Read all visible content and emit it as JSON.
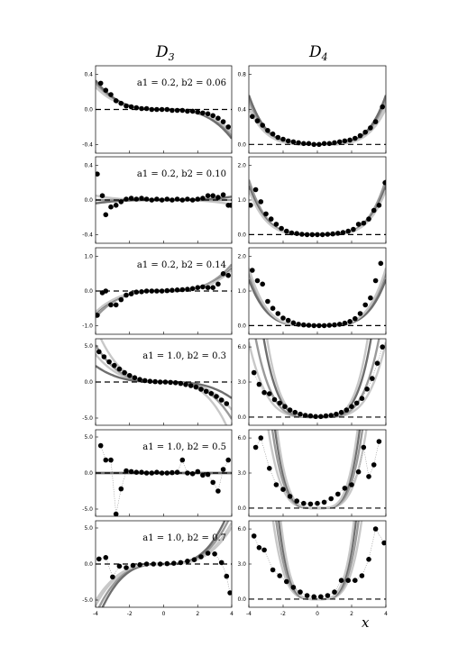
{
  "figure": {
    "column_titles": [
      {
        "main": "D",
        "sub": "3"
      },
      {
        "main": "D",
        "sub": "4"
      }
    ],
    "x_axis_label": "x",
    "x_ticks": [
      "-4",
      "-2",
      "0",
      "2",
      "4"
    ]
  },
  "panel_labels": [
    "a1 = 0.2,  b2 = 0.06",
    "a1 = 0.2,  b2 = 0.10",
    "a1 = 0.2,  b2 = 0.14",
    "a1 = 1.0,  b2 = 0.3",
    "a1 = 1.0,  b2 = 0.5",
    "a1 = 1.0,  b2 = 0.7"
  ],
  "colors": {
    "points": "#000000",
    "curve_light": "#c8c8c8",
    "curve_mid": "#9a9a9a",
    "curve_dark": "#6e6e6e",
    "reference": "#000000"
  },
  "chart_data": [
    {
      "type": "scatter",
      "column": "D3",
      "a1": 0.2,
      "b2": 0.06,
      "xlim": [
        -4,
        4
      ],
      "ylim": [
        -0.5,
        0.5
      ],
      "yticks": [
        "0.4",
        "0.0",
        "-0.4"
      ],
      "points": [
        [
          -3.7,
          0.3
        ],
        [
          -3.4,
          0.22
        ],
        [
          -3.1,
          0.17
        ],
        [
          -2.8,
          0.1
        ],
        [
          -2.5,
          0.07
        ],
        [
          -2.2,
          0.04
        ],
        [
          -1.9,
          0.03
        ],
        [
          -1.6,
          0.02
        ],
        [
          -1.3,
          0.01
        ],
        [
          -1.0,
          0.01
        ],
        [
          -0.7,
          0.0
        ],
        [
          -0.4,
          0.0
        ],
        [
          -0.1,
          0.0
        ],
        [
          0.2,
          0.0
        ],
        [
          0.5,
          -0.01
        ],
        [
          0.8,
          -0.01
        ],
        [
          1.1,
          -0.01
        ],
        [
          1.4,
          -0.02
        ],
        [
          1.7,
          -0.02
        ],
        [
          2.0,
          -0.03
        ],
        [
          2.3,
          -0.04
        ],
        [
          2.6,
          -0.05
        ],
        [
          2.9,
          -0.07
        ],
        [
          3.2,
          -0.1
        ],
        [
          3.5,
          -0.14
        ],
        [
          3.8,
          -0.2
        ]
      ]
    },
    {
      "type": "scatter",
      "column": "D4",
      "a1": 0.2,
      "b2": 0.06,
      "xlim": [
        -4,
        4
      ],
      "ylim": [
        -0.1,
        0.9
      ],
      "yticks": [
        "0.8",
        "0.4",
        "0.0"
      ],
      "points": [
        [
          -3.8,
          0.32
        ],
        [
          -3.5,
          0.27
        ],
        [
          -3.2,
          0.22
        ],
        [
          -2.9,
          0.16
        ],
        [
          -2.6,
          0.12
        ],
        [
          -2.3,
          0.08
        ],
        [
          -2.0,
          0.06
        ],
        [
          -1.7,
          0.04
        ],
        [
          -1.4,
          0.03
        ],
        [
          -1.1,
          0.02
        ],
        [
          -0.8,
          0.01
        ],
        [
          -0.5,
          0.01
        ],
        [
          -0.2,
          0.0
        ],
        [
          0.1,
          0.0
        ],
        [
          0.4,
          0.01
        ],
        [
          0.7,
          0.01
        ],
        [
          1.0,
          0.02
        ],
        [
          1.3,
          0.03
        ],
        [
          1.6,
          0.04
        ],
        [
          1.9,
          0.05
        ],
        [
          2.2,
          0.07
        ],
        [
          2.5,
          0.1
        ],
        [
          2.8,
          0.14
        ],
        [
          3.1,
          0.19
        ],
        [
          3.4,
          0.26
        ],
        [
          3.8,
          0.43
        ]
      ]
    },
    {
      "type": "scatter",
      "column": "D3",
      "a1": 0.2,
      "b2": 0.1,
      "xlim": [
        -4,
        4
      ],
      "ylim": [
        -0.5,
        0.5
      ],
      "yticks": [
        "0.4",
        "0.0",
        "-0.4"
      ],
      "points": [
        [
          -3.9,
          0.3
        ],
        [
          -3.6,
          0.05
        ],
        [
          -3.4,
          -0.17
        ],
        [
          -3.1,
          -0.08
        ],
        [
          -2.8,
          -0.06
        ],
        [
          -2.5,
          -0.02
        ],
        [
          -2.2,
          0.01
        ],
        [
          -1.9,
          0.02
        ],
        [
          -1.6,
          0.01
        ],
        [
          -1.3,
          0.02
        ],
        [
          -1.0,
          0.01
        ],
        [
          -0.7,
          0.0
        ],
        [
          -0.4,
          0.01
        ],
        [
          -0.1,
          0.0
        ],
        [
          0.2,
          0.01
        ],
        [
          0.5,
          0.0
        ],
        [
          0.8,
          0.01
        ],
        [
          1.1,
          0.0
        ],
        [
          1.4,
          0.01
        ],
        [
          1.7,
          0.0
        ],
        [
          2.0,
          0.01
        ],
        [
          2.3,
          0.02
        ],
        [
          2.6,
          0.05
        ],
        [
          2.9,
          0.05
        ],
        [
          3.2,
          0.03
        ],
        [
          3.5,
          0.06
        ],
        [
          3.8,
          -0.06
        ],
        [
          3.95,
          -0.06
        ]
      ]
    },
    {
      "type": "scatter",
      "column": "D4",
      "a1": 0.2,
      "b2": 0.1,
      "xlim": [
        -4,
        4
      ],
      "ylim": [
        -0.25,
        2.25
      ],
      "yticks": [
        "2.0",
        "1.0",
        "0.0"
      ],
      "points": [
        [
          -3.9,
          0.85
        ],
        [
          -3.6,
          1.3
        ],
        [
          -3.3,
          0.95
        ],
        [
          -3.0,
          0.6
        ],
        [
          -2.7,
          0.45
        ],
        [
          -2.4,
          0.3
        ],
        [
          -2.1,
          0.18
        ],
        [
          -1.8,
          0.1
        ],
        [
          -1.5,
          0.05
        ],
        [
          -1.2,
          0.03
        ],
        [
          -0.9,
          0.01
        ],
        [
          -0.6,
          0.0
        ],
        [
          -0.3,
          0.0
        ],
        [
          0.0,
          0.0
        ],
        [
          0.3,
          0.0
        ],
        [
          0.6,
          0.01
        ],
        [
          0.9,
          0.02
        ],
        [
          1.2,
          0.04
        ],
        [
          1.5,
          0.06
        ],
        [
          1.8,
          0.1
        ],
        [
          2.1,
          0.15
        ],
        [
          2.4,
          0.3
        ],
        [
          2.7,
          0.33
        ],
        [
          3.0,
          0.45
        ],
        [
          3.3,
          0.7
        ],
        [
          3.6,
          0.85
        ],
        [
          3.95,
          1.5
        ]
      ]
    },
    {
      "type": "scatter",
      "column": "D3",
      "a1": 0.2,
      "b2": 0.14,
      "xlim": [
        -4,
        4
      ],
      "ylim": [
        -1.25,
        1.25
      ],
      "yticks": [
        "1.0",
        "0.0",
        "-1.0"
      ],
      "points": [
        [
          -3.9,
          -0.7
        ],
        [
          -3.6,
          -0.05
        ],
        [
          -3.4,
          0.0
        ],
        [
          -3.1,
          -0.4
        ],
        [
          -2.8,
          -0.4
        ],
        [
          -2.5,
          -0.25
        ],
        [
          -2.2,
          -0.12
        ],
        [
          -1.9,
          -0.08
        ],
        [
          -1.6,
          -0.03
        ],
        [
          -1.3,
          -0.02
        ],
        [
          -1.0,
          0.0
        ],
        [
          -0.7,
          0.0
        ],
        [
          -0.4,
          0.0
        ],
        [
          -0.1,
          0.0
        ],
        [
          0.2,
          0.01
        ],
        [
          0.5,
          0.02
        ],
        [
          0.8,
          0.03
        ],
        [
          1.1,
          0.04
        ],
        [
          1.4,
          0.05
        ],
        [
          1.7,
          0.07
        ],
        [
          2.0,
          0.1
        ],
        [
          2.3,
          0.12
        ],
        [
          2.6,
          0.1
        ],
        [
          2.9,
          0.1
        ],
        [
          3.2,
          0.2
        ],
        [
          3.5,
          0.5
        ],
        [
          3.8,
          0.45
        ]
      ]
    },
    {
      "type": "scatter",
      "column": "D4",
      "a1": 0.2,
      "b2": 0.14,
      "xlim": [
        -4,
        4
      ],
      "ylim": [
        -0.25,
        2.25
      ],
      "yticks": [
        "2.0",
        "1.0",
        "0.0"
      ],
      "points": [
        [
          -3.8,
          1.6
        ],
        [
          -3.5,
          1.3
        ],
        [
          -3.2,
          1.2
        ],
        [
          -2.9,
          0.7
        ],
        [
          -2.6,
          0.5
        ],
        [
          -2.3,
          0.35
        ],
        [
          -2.0,
          0.22
        ],
        [
          -1.7,
          0.15
        ],
        [
          -1.4,
          0.08
        ],
        [
          -1.1,
          0.04
        ],
        [
          -0.8,
          0.02
        ],
        [
          -0.5,
          0.01
        ],
        [
          -0.2,
          0.0
        ],
        [
          0.1,
          0.0
        ],
        [
          0.4,
          0.0
        ],
        [
          0.7,
          0.01
        ],
        [
          1.0,
          0.02
        ],
        [
          1.3,
          0.04
        ],
        [
          1.6,
          0.07
        ],
        [
          1.9,
          0.12
        ],
        [
          2.2,
          0.2
        ],
        [
          2.5,
          0.35
        ],
        [
          2.8,
          0.6
        ],
        [
          3.1,
          0.8
        ],
        [
          3.4,
          1.3
        ],
        [
          3.7,
          1.8
        ]
      ]
    },
    {
      "type": "scatter",
      "column": "D3",
      "a1": 1.0,
      "b2": 0.3,
      "xlim": [
        -4,
        4
      ],
      "ylim": [
        -6.0,
        6.0
      ],
      "yticks": [
        "5.0",
        "0.0",
        "-5.0"
      ],
      "points": [
        [
          -3.8,
          4.2
        ],
        [
          -3.5,
          3.5
        ],
        [
          -3.2,
          2.8
        ],
        [
          -2.9,
          2.3
        ],
        [
          -2.6,
          1.8
        ],
        [
          -2.3,
          1.3
        ],
        [
          -2.0,
          0.9
        ],
        [
          -1.7,
          0.6
        ],
        [
          -1.4,
          0.35
        ],
        [
          -1.1,
          0.2
        ],
        [
          -0.8,
          0.1
        ],
        [
          -0.5,
          0.05
        ],
        [
          -0.2,
          0.0
        ],
        [
          0.1,
          0.0
        ],
        [
          0.4,
          -0.05
        ],
        [
          0.7,
          -0.1
        ],
        [
          1.0,
          -0.2
        ],
        [
          1.3,
          -0.35
        ],
        [
          1.6,
          -0.5
        ],
        [
          1.9,
          -0.7
        ],
        [
          2.2,
          -1.0
        ],
        [
          2.5,
          -1.3
        ],
        [
          2.8,
          -1.6
        ],
        [
          3.1,
          -2.0
        ],
        [
          3.4,
          -2.5
        ],
        [
          3.7,
          -3.0
        ]
      ]
    },
    {
      "type": "scatter",
      "column": "D4",
      "a1": 1.0,
      "b2": 0.3,
      "xlim": [
        -4,
        4
      ],
      "ylim": [
        -0.7,
        6.7
      ],
      "yticks": [
        "6.0",
        "3.0",
        "0.0"
      ],
      "points": [
        [
          -3.7,
          3.8
        ],
        [
          -3.4,
          2.8
        ],
        [
          -3.1,
          2.1
        ],
        [
          -2.8,
          2.0
        ],
        [
          -2.5,
          1.5
        ],
        [
          -2.2,
          1.2
        ],
        [
          -1.9,
          0.9
        ],
        [
          -1.6,
          0.6
        ],
        [
          -1.3,
          0.4
        ],
        [
          -1.0,
          0.25
        ],
        [
          -0.7,
          0.15
        ],
        [
          -0.4,
          0.1
        ],
        [
          -0.1,
          0.05
        ],
        [
          0.2,
          0.05
        ],
        [
          0.5,
          0.1
        ],
        [
          0.8,
          0.15
        ],
        [
          1.1,
          0.25
        ],
        [
          1.4,
          0.4
        ],
        [
          1.7,
          0.6
        ],
        [
          2.0,
          0.9
        ],
        [
          2.3,
          1.2
        ],
        [
          2.6,
          1.6
        ],
        [
          2.9,
          2.4
        ],
        [
          3.2,
          3.3
        ],
        [
          3.5,
          4.6
        ],
        [
          3.8,
          6.0
        ]
      ]
    },
    {
      "type": "scatter",
      "column": "D3",
      "a1": 1.0,
      "b2": 0.5,
      "xlim": [
        -4,
        4
      ],
      "ylim": [
        -6.0,
        6.0
      ],
      "yticks": [
        "5.0",
        "0.0",
        "-5.0"
      ],
      "points": [
        [
          -3.7,
          3.8
        ],
        [
          -3.4,
          1.8
        ],
        [
          -3.1,
          1.8
        ],
        [
          -2.8,
          -5.7
        ],
        [
          -2.5,
          -2.2
        ],
        [
          -2.2,
          0.3
        ],
        [
          -1.9,
          0.2
        ],
        [
          -1.6,
          0.1
        ],
        [
          -1.3,
          0.1
        ],
        [
          -1.0,
          0.0
        ],
        [
          -0.7,
          0.0
        ],
        [
          -0.4,
          0.1
        ],
        [
          -0.1,
          0.0
        ],
        [
          0.2,
          0.0
        ],
        [
          0.5,
          0.05
        ],
        [
          0.8,
          0.1
        ],
        [
          1.1,
          1.8
        ],
        [
          1.4,
          0.0
        ],
        [
          1.7,
          -0.1
        ],
        [
          2.0,
          0.2
        ],
        [
          2.3,
          -0.3
        ],
        [
          2.6,
          -0.2
        ],
        [
          2.9,
          -1.3
        ],
        [
          3.2,
          -2.5
        ],
        [
          3.5,
          0.5
        ],
        [
          3.8,
          1.8
        ]
      ]
    },
    {
      "type": "scatter",
      "column": "D4",
      "a1": 1.0,
      "b2": 0.5,
      "xlim": [
        -4,
        4
      ],
      "ylim": [
        -0.7,
        6.7
      ],
      "yticks": [
        "6.0",
        "3.0",
        "0.0"
      ],
      "points": [
        [
          -3.6,
          5.2
        ],
        [
          -3.3,
          6.0
        ],
        [
          -2.8,
          3.4
        ],
        [
          -2.4,
          2.0
        ],
        [
          -2.0,
          1.6
        ],
        [
          -1.6,
          1.0
        ],
        [
          -1.2,
          0.6
        ],
        [
          -0.8,
          0.4
        ],
        [
          -0.4,
          0.35
        ],
        [
          0.0,
          0.4
        ],
        [
          0.4,
          0.5
        ],
        [
          0.8,
          0.8
        ],
        [
          1.2,
          1.2
        ],
        [
          1.6,
          1.7
        ],
        [
          2.0,
          2.0
        ],
        [
          2.4,
          3.1
        ],
        [
          2.7,
          5.2
        ],
        [
          3.0,
          2.7
        ],
        [
          3.3,
          3.7
        ],
        [
          3.6,
          5.7
        ]
      ]
    },
    {
      "type": "scatter",
      "column": "D3",
      "a1": 1.0,
      "b2": 0.7,
      "xlim": [
        -4,
        4
      ],
      "ylim": [
        -6.0,
        6.0
      ],
      "yticks": [
        "5.0",
        "0.0",
        "-5.0"
      ],
      "points": [
        [
          -3.8,
          0.7
        ],
        [
          -3.4,
          0.9
        ],
        [
          -3.0,
          -1.8
        ],
        [
          -2.6,
          -0.3
        ],
        [
          -2.2,
          -0.5
        ],
        [
          -1.8,
          -0.2
        ],
        [
          -1.4,
          -0.1
        ],
        [
          -1.0,
          0.0
        ],
        [
          -0.6,
          0.0
        ],
        [
          -0.2,
          0.0
        ],
        [
          0.2,
          0.05
        ],
        [
          0.6,
          0.1
        ],
        [
          1.0,
          0.2
        ],
        [
          1.4,
          0.4
        ],
        [
          1.8,
          0.6
        ],
        [
          2.2,
          1.0
        ],
        [
          2.6,
          1.5
        ],
        [
          3.0,
          1.4
        ],
        [
          3.4,
          0.2
        ],
        [
          3.7,
          -1.7
        ],
        [
          3.9,
          -4.0
        ]
      ]
    },
    {
      "type": "scatter",
      "column": "D4",
      "a1": 1.0,
      "b2": 0.7,
      "xlim": [
        -4,
        4
      ],
      "ylim": [
        -0.7,
        6.7
      ],
      "yticks": [
        "6.0",
        "3.0",
        "0.0"
      ],
      "points": [
        [
          -3.7,
          5.4
        ],
        [
          -3.4,
          4.4
        ],
        [
          -3.1,
          4.2
        ],
        [
          -2.6,
          2.5
        ],
        [
          -2.2,
          2.0
        ],
        [
          -1.8,
          1.5
        ],
        [
          -1.4,
          1.0
        ],
        [
          -1.0,
          0.6
        ],
        [
          -0.6,
          0.3
        ],
        [
          -0.2,
          0.2
        ],
        [
          0.2,
          0.2
        ],
        [
          0.6,
          0.3
        ],
        [
          1.0,
          0.6
        ],
        [
          1.4,
          1.6
        ],
        [
          1.8,
          1.6
        ],
        [
          2.2,
          1.6
        ],
        [
          2.6,
          2.0
        ],
        [
          3.0,
          3.4
        ],
        [
          3.4,
          6.0
        ],
        [
          3.9,
          4.8
        ]
      ]
    }
  ]
}
